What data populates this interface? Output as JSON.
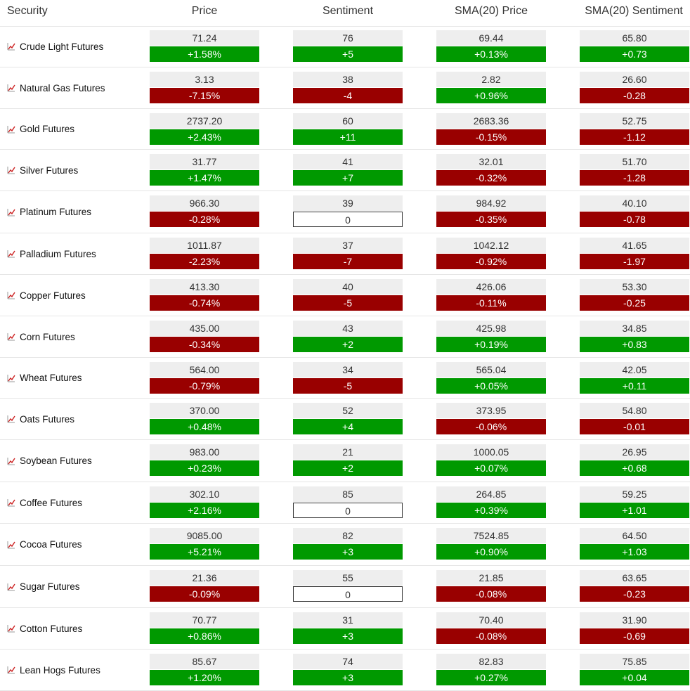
{
  "header": {
    "security": "Security",
    "price": "Price",
    "sentiment": "Sentiment",
    "sma_price": "SMA(20) Price",
    "sma_sentiment": "SMA(20) Sentiment"
  },
  "colors": {
    "positive": "#009900",
    "negative": "#990000",
    "neutral_bg": "#eeeeee",
    "trend_icon": "#cc2222"
  },
  "rows": [
    {
      "name": "Crude Light Futures",
      "price": "71.24",
      "price_chg": "+1.58%",
      "sent": "76",
      "sent_chg": "+5",
      "sma_price": "69.44",
      "sma_price_chg": "+0.13%",
      "sma_sent": "65.80",
      "sma_sent_chg": "+0.73"
    },
    {
      "name": "Natural Gas Futures",
      "price": "3.13",
      "price_chg": "-7.15%",
      "sent": "38",
      "sent_chg": "-4",
      "sma_price": "2.82",
      "sma_price_chg": "+0.96%",
      "sma_sent": "26.60",
      "sma_sent_chg": "-0.28"
    },
    {
      "name": "Gold Futures",
      "price": "2737.20",
      "price_chg": "+2.43%",
      "sent": "60",
      "sent_chg": "+11",
      "sma_price": "2683.36",
      "sma_price_chg": "-0.15%",
      "sma_sent": "52.75",
      "sma_sent_chg": "-1.12"
    },
    {
      "name": "Silver Futures",
      "price": "31.77",
      "price_chg": "+1.47%",
      "sent": "41",
      "sent_chg": "+7",
      "sma_price": "32.01",
      "sma_price_chg": "-0.32%",
      "sma_sent": "51.70",
      "sma_sent_chg": "-1.28"
    },
    {
      "name": "Platinum Futures",
      "price": "966.30",
      "price_chg": "-0.28%",
      "sent": "39",
      "sent_chg": "0",
      "sma_price": "984.92",
      "sma_price_chg": "-0.35%",
      "sma_sent": "40.10",
      "sma_sent_chg": "-0.78"
    },
    {
      "name": "Palladium Futures",
      "price": "1011.87",
      "price_chg": "-2.23%",
      "sent": "37",
      "sent_chg": "-7",
      "sma_price": "1042.12",
      "sma_price_chg": "-0.92%",
      "sma_sent": "41.65",
      "sma_sent_chg": "-1.97"
    },
    {
      "name": "Copper Futures",
      "price": "413.30",
      "price_chg": "-0.74%",
      "sent": "40",
      "sent_chg": "-5",
      "sma_price": "426.06",
      "sma_price_chg": "-0.11%",
      "sma_sent": "53.30",
      "sma_sent_chg": "-0.25"
    },
    {
      "name": "Corn Futures",
      "price": "435.00",
      "price_chg": "-0.34%",
      "sent": "43",
      "sent_chg": "+2",
      "sma_price": "425.98",
      "sma_price_chg": "+0.19%",
      "sma_sent": "34.85",
      "sma_sent_chg": "+0.83"
    },
    {
      "name": "Wheat Futures",
      "price": "564.00",
      "price_chg": "-0.79%",
      "sent": "34",
      "sent_chg": "-5",
      "sma_price": "565.04",
      "sma_price_chg": "+0.05%",
      "sma_sent": "42.05",
      "sma_sent_chg": "+0.11"
    },
    {
      "name": "Oats Futures",
      "price": "370.00",
      "price_chg": "+0.48%",
      "sent": "52",
      "sent_chg": "+4",
      "sma_price": "373.95",
      "sma_price_chg": "-0.06%",
      "sma_sent": "54.80",
      "sma_sent_chg": "-0.01"
    },
    {
      "name": "Soybean Futures",
      "price": "983.00",
      "price_chg": "+0.23%",
      "sent": "21",
      "sent_chg": "+2",
      "sma_price": "1000.05",
      "sma_price_chg": "+0.07%",
      "sma_sent": "26.95",
      "sma_sent_chg": "+0.68"
    },
    {
      "name": "Coffee Futures",
      "price": "302.10",
      "price_chg": "+2.16%",
      "sent": "85",
      "sent_chg": "0",
      "sma_price": "264.85",
      "sma_price_chg": "+0.39%",
      "sma_sent": "59.25",
      "sma_sent_chg": "+1.01"
    },
    {
      "name": "Cocoa Futures",
      "price": "9085.00",
      "price_chg": "+5.21%",
      "sent": "82",
      "sent_chg": "+3",
      "sma_price": "7524.85",
      "sma_price_chg": "+0.90%",
      "sma_sent": "64.50",
      "sma_sent_chg": "+1.03"
    },
    {
      "name": "Sugar Futures",
      "price": "21.36",
      "price_chg": "-0.09%",
      "sent": "55",
      "sent_chg": "0",
      "sma_price": "21.85",
      "sma_price_chg": "-0.08%",
      "sma_sent": "63.65",
      "sma_sent_chg": "-0.23"
    },
    {
      "name": "Cotton Futures",
      "price": "70.77",
      "price_chg": "+0.86%",
      "sent": "31",
      "sent_chg": "+3",
      "sma_price": "70.40",
      "sma_price_chg": "-0.08%",
      "sma_sent": "31.90",
      "sma_sent_chg": "-0.69"
    },
    {
      "name": "Lean Hogs Futures",
      "price": "85.67",
      "price_chg": "+1.20%",
      "sent": "74",
      "sent_chg": "+3",
      "sma_price": "82.83",
      "sma_price_chg": "+0.27%",
      "sma_sent": "75.85",
      "sma_sent_chg": "+0.04"
    }
  ]
}
